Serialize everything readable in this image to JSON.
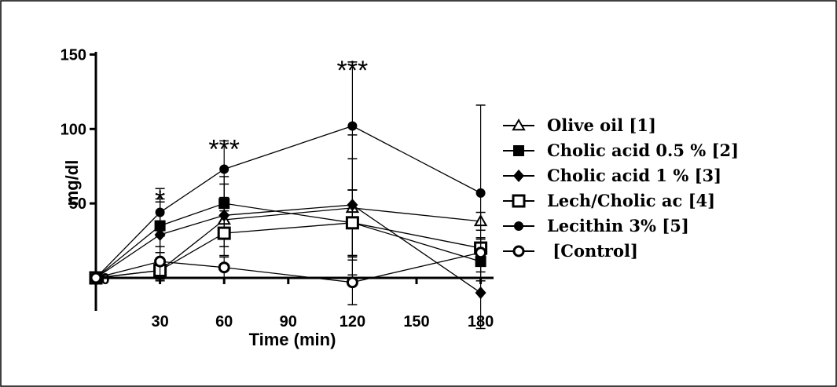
{
  "chart_data": {
    "type": "line",
    "xlabel": "Time (min)",
    "ylabel": "mg/dl",
    "xlim": [
      0,
      185
    ],
    "ylim": [
      -20,
      150
    ],
    "x_ticks": [
      "30",
      "60",
      "90",
      "120",
      "150",
      "180"
    ],
    "y_ticks": [
      "50",
      "100",
      "150"
    ],
    "x_origin_label": "0",
    "grid": false,
    "legend_position": "right",
    "x": [
      0,
      30,
      60,
      120,
      180
    ],
    "series": [
      {
        "name": "Olive oil [1]",
        "marker": "triangle-open",
        "values": [
          0,
          5,
          39,
          47,
          38
        ],
        "errors": [
          0,
          7,
          12,
          33,
          6
        ]
      },
      {
        "name": "Cholic acid 0.5 % [2]",
        "marker": "square-filled",
        "values": [
          0,
          35,
          50,
          37,
          11
        ],
        "errors": [
          0,
          18,
          18,
          22,
          7
        ]
      },
      {
        "name": "Cholic acid 1 % [3]",
        "marker": "diamond-filled",
        "values": [
          0,
          29,
          42,
          49,
          -10
        ],
        "errors": [
          0,
          22,
          21,
          47,
          24
        ]
      },
      {
        "name": "Lech/Cholic ac [4]",
        "marker": "square-open",
        "values": [
          0,
          5,
          30,
          37,
          20
        ],
        "errors": [
          0,
          6,
          15,
          22,
          7
        ]
      },
      {
        "name": "Lecithin 3% [5]",
        "marker": "circle-filled",
        "values": [
          0,
          44,
          73,
          102,
          57
        ],
        "errors": [
          0,
          16,
          19,
          43,
          59
        ]
      },
      {
        "name": " [Control]",
        "marker": "circle-open",
        "values": [
          0,
          11,
          7,
          -3,
          17
        ],
        "errors": [
          0,
          10,
          7,
          15,
          9
        ]
      }
    ],
    "annotations": [
      {
        "x": 30,
        "y": 58,
        "text": "*"
      },
      {
        "x": 60,
        "y": 92,
        "text": "***"
      },
      {
        "x": 60,
        "y": 53,
        "text": "*"
      },
      {
        "x": 120,
        "y": 145,
        "text": "***"
      }
    ]
  }
}
